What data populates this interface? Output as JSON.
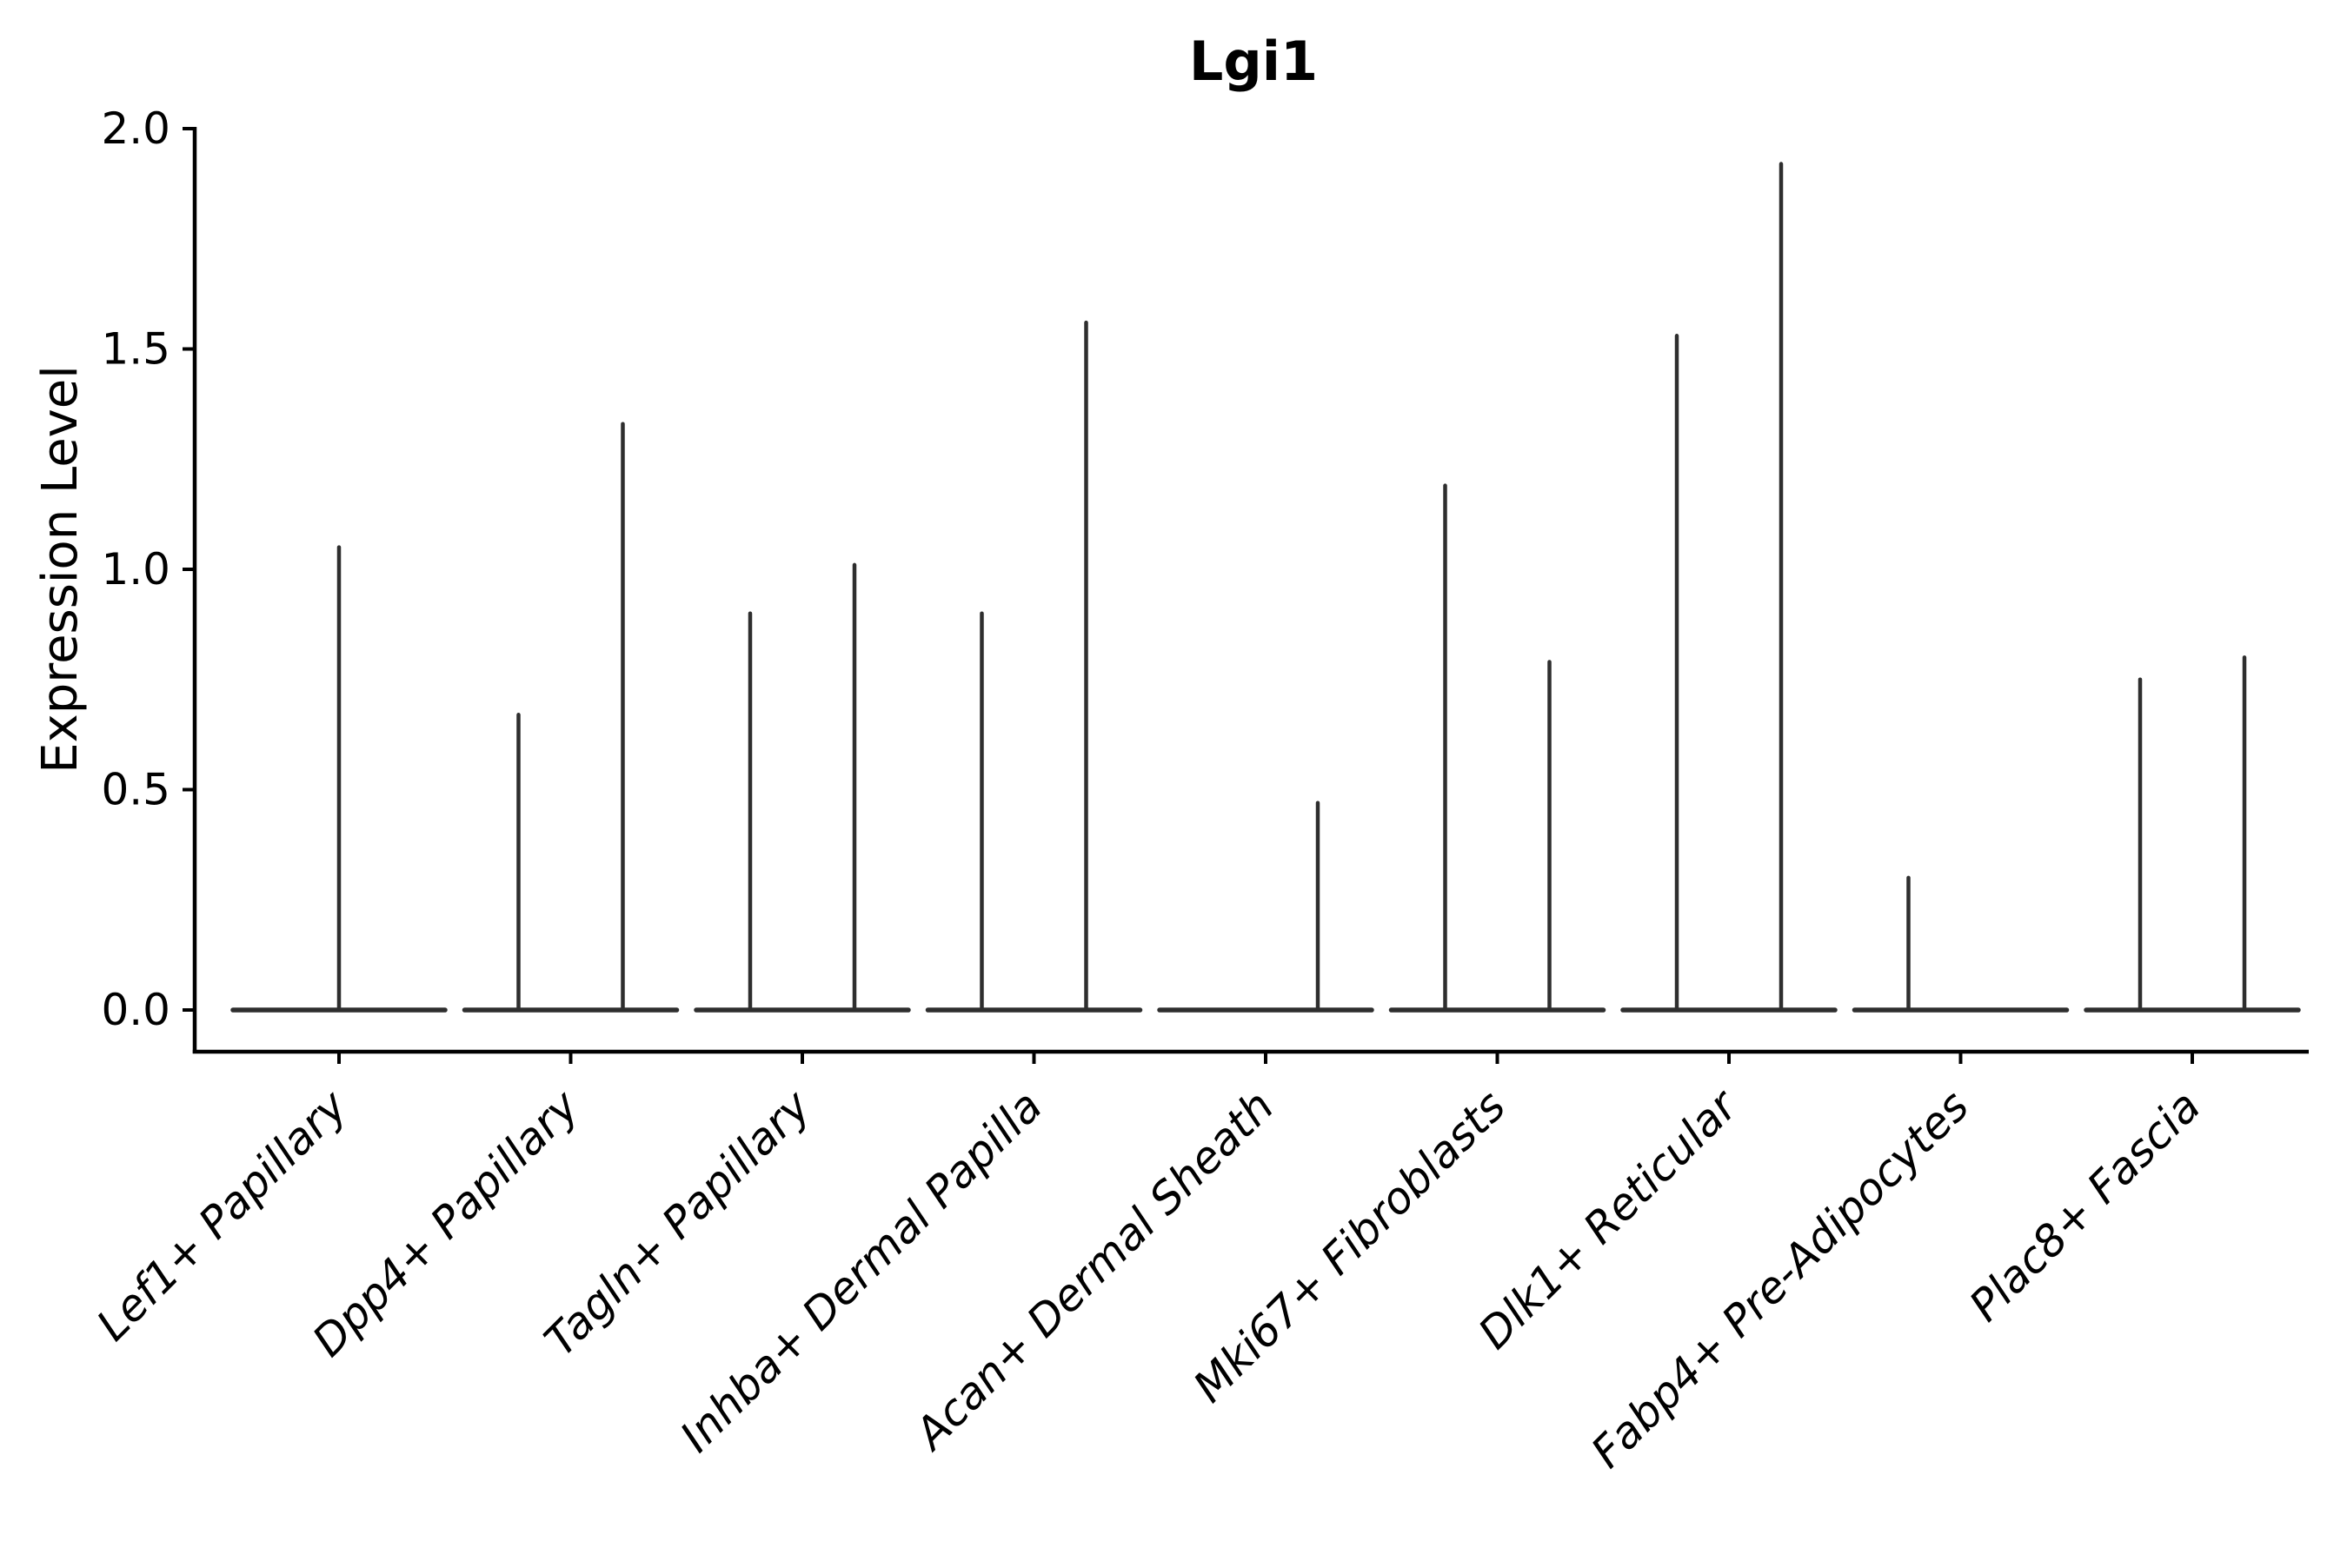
{
  "figure": {
    "background_color": "#ffffff",
    "axis_color": "#000000",
    "violin_color": "#2e2e2e"
  },
  "chart_data": {
    "type": "violin",
    "title": "Lgi1",
    "ylabel": "Expression Level",
    "xlabel": "",
    "ylim": [
      -0.09,
      2.0
    ],
    "yticks": [
      2.0,
      1.5,
      1.0,
      0.5,
      0.0
    ],
    "ytick_labels": [
      "2.0",
      "1.5",
      "1.0",
      "0.5",
      "0.0"
    ],
    "grid": false,
    "legend": "none",
    "spines": [
      "left",
      "bottom"
    ],
    "note": "Each violin is extremely thin: a flat base at expression 0 plus a narrow spike up to the max expression value. Categories with two violins have them dodged left/right of the category center.",
    "categories": [
      {
        "label": "Lef1+ Papillary",
        "violins": [
          {
            "position": "center",
            "max_expression": 1.05
          }
        ]
      },
      {
        "label": "Dpp4+ Papillary",
        "violins": [
          {
            "position": "left",
            "max_expression": 0.67
          },
          {
            "position": "right",
            "max_expression": 1.33
          }
        ]
      },
      {
        "label": "Tagln+ Papillary",
        "violins": [
          {
            "position": "left",
            "max_expression": 0.9
          },
          {
            "position": "right",
            "max_expression": 1.01
          }
        ]
      },
      {
        "label": "Inhba+ Dermal Papilla",
        "violins": [
          {
            "position": "left",
            "max_expression": 0.9
          },
          {
            "position": "right",
            "max_expression": 1.56
          }
        ]
      },
      {
        "label": "Acan+ Dermal Sheath",
        "violins": [
          {
            "position": "right",
            "max_expression": 0.47
          }
        ]
      },
      {
        "label": "Mki67+ Fibroblasts",
        "violins": [
          {
            "position": "left",
            "max_expression": 1.19
          },
          {
            "position": "right",
            "max_expression": 0.79
          }
        ]
      },
      {
        "label": "Dlk1+ Reticular",
        "violins": [
          {
            "position": "left",
            "max_expression": 1.53
          },
          {
            "position": "right",
            "max_expression": 1.92
          }
        ]
      },
      {
        "label": "Fabp4+ Pre-Adipocytes",
        "violins": [
          {
            "position": "left",
            "max_expression": 0.3
          }
        ]
      },
      {
        "label": "Plac8+ Fascia",
        "violins": [
          {
            "position": "left",
            "max_expression": 0.75
          },
          {
            "position": "right",
            "max_expression": 0.8
          }
        ]
      }
    ]
  }
}
